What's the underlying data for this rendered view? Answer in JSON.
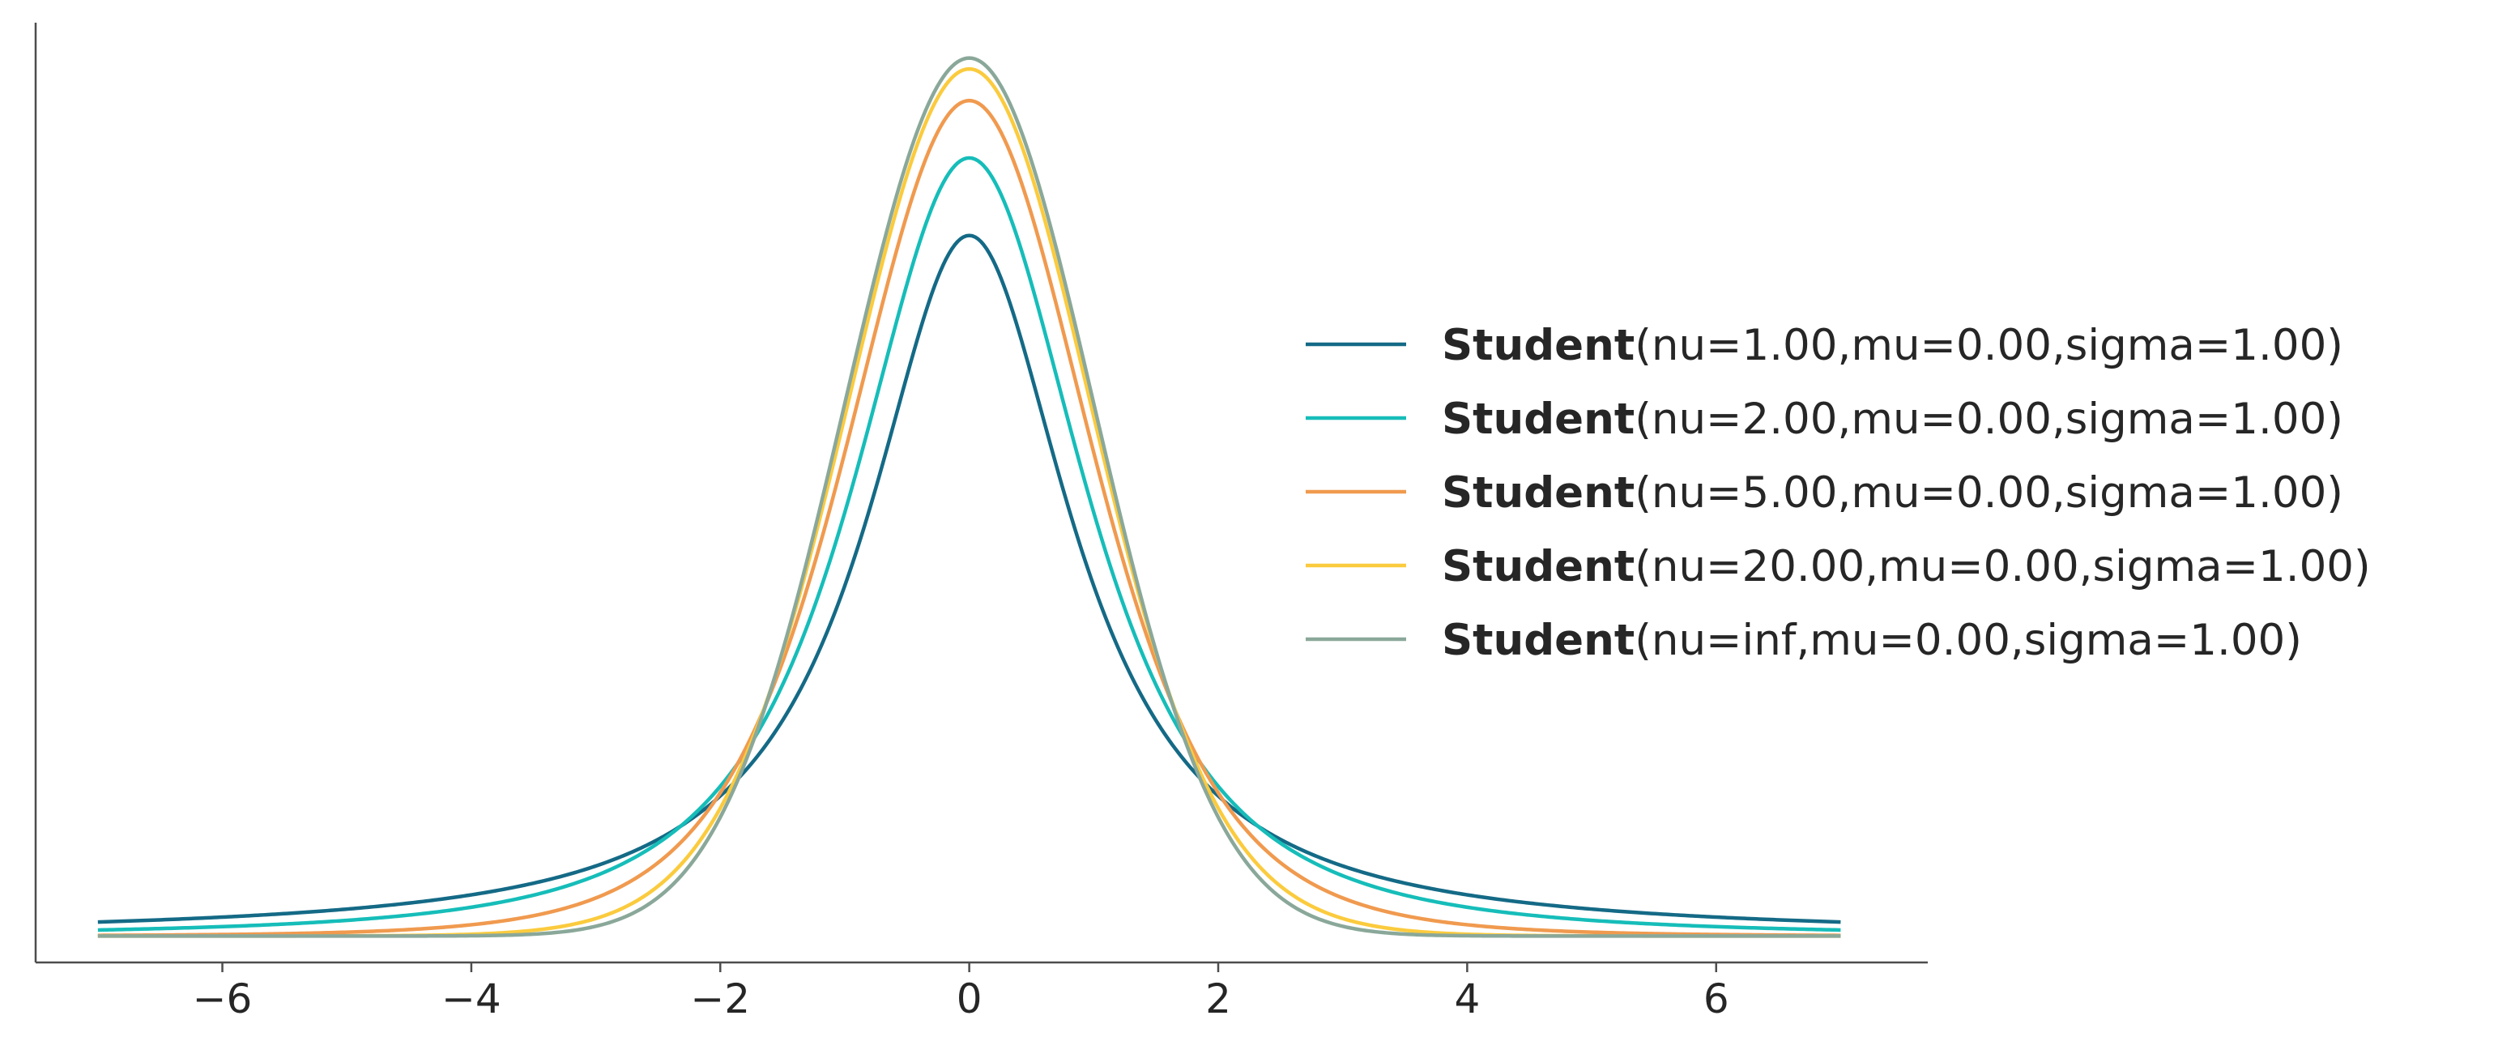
{
  "chart_data": {
    "type": "line",
    "title": "",
    "xlabel": "",
    "ylabel": "",
    "xlim": [
      -7.5,
      7.7
    ],
    "ylim": [
      -0.012,
      0.415
    ],
    "x_range": [
      -7,
      7
    ],
    "xticks": [
      -6,
      -4,
      -2,
      0,
      2,
      4,
      6
    ],
    "xtick_labels": [
      "−6",
      "−4",
      "−2",
      "0",
      "2",
      "4",
      "6"
    ],
    "y_axis_ticks": "none",
    "grid": false,
    "legend_placement": "right",
    "series": [
      {
        "name_bold": "Student",
        "name_params": "(nu=1.00,mu=0.00,sigma=1.00)",
        "nu": 1,
        "mu": 0,
        "sigma": 1,
        "peak": 0.3183,
        "color": "#146a86"
      },
      {
        "name_bold": "Student",
        "name_params": "(nu=2.00,mu=0.00,sigma=1.00)",
        "nu": 2,
        "mu": 0,
        "sigma": 1,
        "peak": 0.3536,
        "color": "#16bdb9"
      },
      {
        "name_bold": "Student",
        "name_params": "(nu=5.00,mu=0.00,sigma=1.00)",
        "nu": 5,
        "mu": 0,
        "sigma": 1,
        "peak": 0.3796,
        "color": "#f09a4f"
      },
      {
        "name_bold": "Student",
        "name_params": "(nu=20.00,mu=0.00,sigma=1.00)",
        "nu": 20,
        "mu": 0,
        "sigma": 1,
        "peak": 0.394,
        "color": "#fbcb3e"
      },
      {
        "name_bold": "Student",
        "name_params": "(nu=inf,mu=0.00,sigma=1.00)",
        "nu": "inf",
        "mu": 0,
        "sigma": 1,
        "peak": 0.3989,
        "color": "#8aa89a"
      }
    ]
  }
}
